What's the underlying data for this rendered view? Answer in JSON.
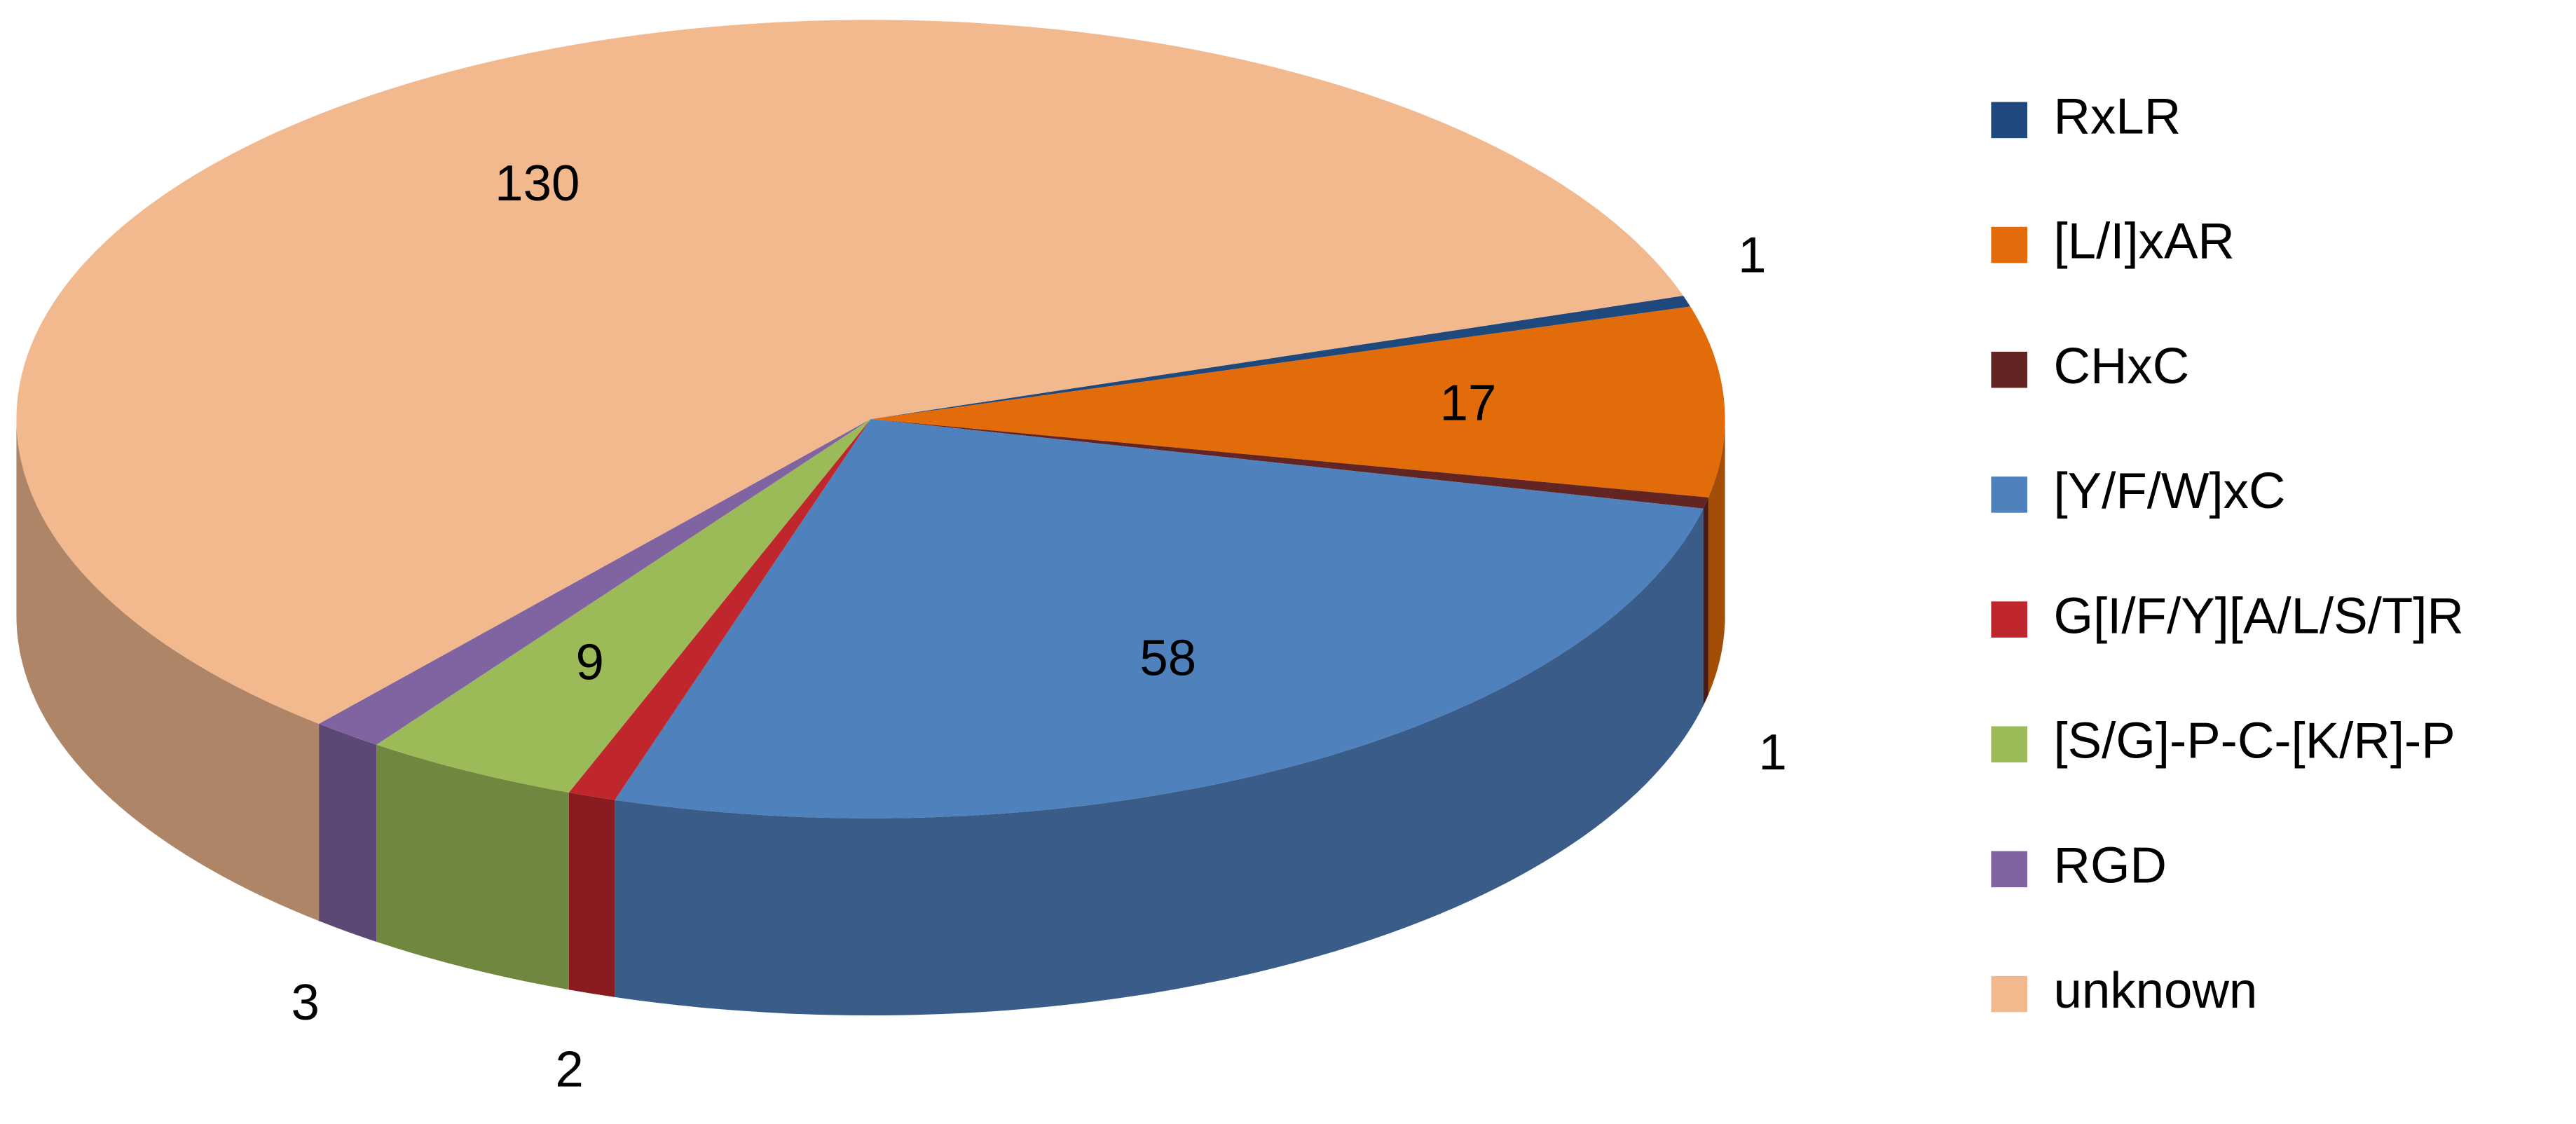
{
  "chart_data": {
    "type": "pie",
    "categories": [
      "RxLR",
      "[L/I]xAR",
      "CHxC",
      "[Y/F/W]xC",
      "G[I/F/Y][A/L/S/T]R",
      "[S/G]-P-C-[K/R]-P",
      "RGD",
      "unknown"
    ],
    "values": [
      1,
      17,
      1,
      58,
      2,
      9,
      3,
      130
    ],
    "colors": [
      "#1f497d",
      "#e36c0a",
      "#632523",
      "#4f81bd",
      "#c0272d",
      "#9bbb59",
      "#8064a2",
      "#f2b98f"
    ],
    "legend": "right"
  }
}
